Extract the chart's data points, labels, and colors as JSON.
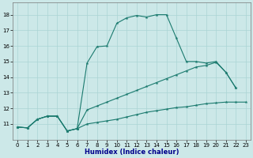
{
  "xlabel": "Humidex (Indice chaleur)",
  "bg_color": "#cce8e8",
  "line_color": "#1a7a6e",
  "grid_color": "#aad4d4",
  "xlim": [
    -0.5,
    23.5
  ],
  "ylim": [
    10.0,
    18.8
  ],
  "yticks": [
    11,
    12,
    13,
    14,
    15,
    16,
    17,
    18
  ],
  "xticks": [
    0,
    1,
    2,
    3,
    4,
    5,
    6,
    7,
    8,
    9,
    10,
    11,
    12,
    13,
    14,
    15,
    16,
    17,
    18,
    19,
    20,
    21,
    22,
    23
  ],
  "line_peak_x": [
    0,
    1,
    2,
    3,
    4,
    5,
    6,
    7,
    8,
    9,
    10,
    11,
    12,
    13,
    14,
    15,
    16,
    17,
    18,
    19,
    20,
    21,
    22
  ],
  "line_peak_y": [
    10.8,
    10.75,
    11.3,
    11.5,
    11.5,
    10.55,
    10.7,
    14.9,
    15.95,
    16.0,
    17.45,
    17.8,
    17.95,
    17.85,
    18.0,
    18.0,
    16.5,
    15.0,
    15.0,
    14.9,
    15.0,
    14.3,
    13.3
  ],
  "line_mid_x": [
    0,
    1,
    2,
    3,
    4,
    5,
    6,
    7,
    8,
    9,
    10,
    11,
    12,
    13,
    14,
    15,
    16,
    17,
    18,
    19,
    20,
    21,
    22
  ],
  "line_mid_y": [
    10.8,
    10.75,
    11.3,
    11.5,
    11.5,
    10.55,
    10.7,
    11.9,
    12.15,
    12.4,
    12.65,
    12.9,
    13.15,
    13.4,
    13.65,
    13.9,
    14.15,
    14.4,
    14.65,
    14.75,
    14.95,
    14.3,
    13.3
  ],
  "line_flat_x": [
    0,
    1,
    2,
    3,
    4,
    5,
    6,
    7,
    8,
    9,
    10,
    11,
    12,
    13,
    14,
    15,
    16,
    17,
    18,
    19,
    20,
    21,
    22,
    23
  ],
  "line_flat_y": [
    10.8,
    10.75,
    11.3,
    11.5,
    11.5,
    10.55,
    10.7,
    11.0,
    11.1,
    11.2,
    11.3,
    11.45,
    11.6,
    11.75,
    11.85,
    11.95,
    12.05,
    12.1,
    12.2,
    12.3,
    12.35,
    12.4,
    12.4,
    12.4
  ],
  "xlabel_color": "#00008b",
  "xlabel_fontsize": 6.0,
  "tick_labelsize": 5.0
}
